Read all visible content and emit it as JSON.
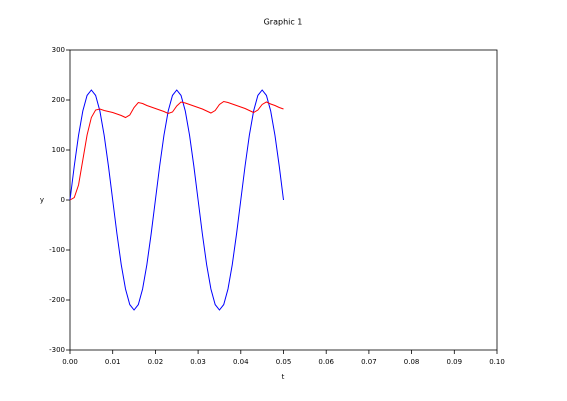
{
  "chart_data": {
    "type": "line",
    "title": "Graphic 1",
    "x_label": "t",
    "y_label": "y",
    "x": [
      0,
      0.001,
      0.002,
      0.003,
      0.004,
      0.005,
      0.006,
      0.007,
      0.008,
      0.009,
      0.01,
      0.011,
      0.012,
      0.013,
      0.014,
      0.015,
      0.016,
      0.017,
      0.018,
      0.019,
      0.02,
      0.021,
      0.022,
      0.023,
      0.024,
      0.025,
      0.026,
      0.027,
      0.028,
      0.029,
      0.03,
      0.031,
      0.032,
      0.033,
      0.034,
      0.035,
      0.036,
      0.037,
      0.038,
      0.039,
      0.04,
      0.041,
      0.042,
      0.043,
      0.044,
      0.045,
      0.046,
      0.047,
      0.048,
      0.049,
      0.05
    ],
    "series": [
      {
        "color": "#0000ff",
        "values": [
          0,
          68.0,
          129.3,
          178.0,
          209.2,
          220,
          209.2,
          178.0,
          129.3,
          68.0,
          0,
          -68.0,
          -129.3,
          -178.0,
          -209.2,
          -220,
          -209.2,
          -178.0,
          -129.3,
          -68.0,
          0,
          68.0,
          129.3,
          178.0,
          209.2,
          220,
          209.2,
          178.0,
          129.3,
          68.0,
          0,
          -68.0,
          -129.3,
          -178.0,
          -209.2,
          -220,
          -209.2,
          -178.0,
          -129.3,
          -68.0,
          0,
          68.0,
          129.3,
          178.0,
          209.2,
          220,
          209.2,
          178.0,
          129.3,
          68.0,
          0
        ]
      },
      {
        "color": "#ff0000",
        "values": [
          0,
          5,
          30,
          80,
          130,
          165,
          180,
          182,
          179,
          177,
          175,
          172,
          169,
          165,
          170,
          185,
          195,
          193,
          189,
          186,
          183,
          180,
          177,
          173,
          176,
          188,
          196,
          194,
          191,
          188,
          185,
          182,
          178,
          174,
          179,
          191,
          197,
          195,
          192,
          189,
          186,
          183,
          179,
          175,
          180,
          191,
          196,
          192,
          189,
          185,
          182
        ]
      }
    ],
    "xlim": [
      0,
      0.1
    ],
    "xticks": [
      {
        "value": 0,
        "label": "0.00"
      },
      {
        "value": 0.01,
        "label": "0.01"
      },
      {
        "value": 0.02,
        "label": "0.02"
      },
      {
        "value": 0.03,
        "label": "0.03"
      },
      {
        "value": 0.04,
        "label": "0.04"
      },
      {
        "value": 0.05,
        "label": "0.05"
      },
      {
        "value": 0.06,
        "label": "0.06"
      },
      {
        "value": 0.07,
        "label": "0.07"
      },
      {
        "value": 0.08,
        "label": "0.08"
      },
      {
        "value": 0.09,
        "label": "0.09"
      },
      {
        "value": 0.1,
        "label": "0.10"
      }
    ],
    "ylim": [
      -300,
      300
    ],
    "yticks": [
      -300,
      -200,
      -100,
      0,
      100,
      200,
      300
    ]
  }
}
